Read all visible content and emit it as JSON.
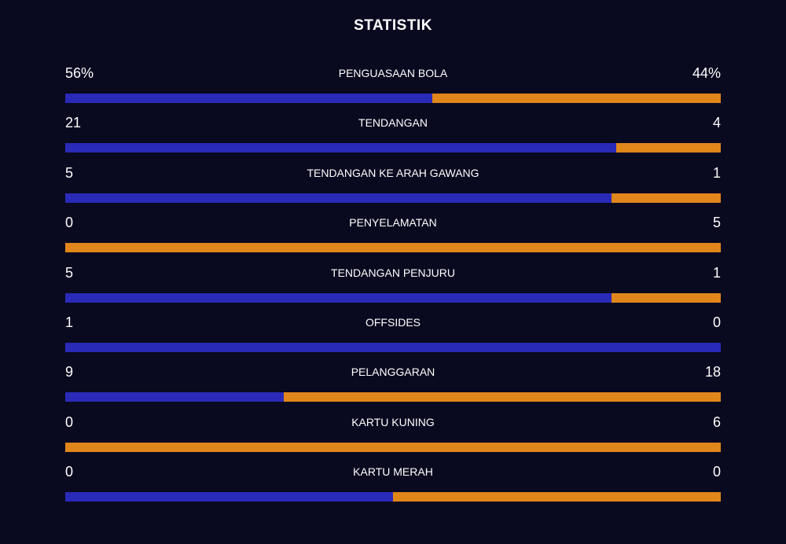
{
  "title": "STATISTIK",
  "colors": {
    "home": "#2a2ab8",
    "away": "#e0861b"
  },
  "rows": [
    {
      "label": "PENGUASAAN BOLA",
      "home": 56,
      "away": 44,
      "home_label": "56%",
      "away_label": "44%"
    },
    {
      "label": "TENDANGAN",
      "home": 21,
      "away": 4
    },
    {
      "label": "TENDANGAN KE ARAH GAWANG",
      "home": 5,
      "away": 1
    },
    {
      "label": "PENYELAMATAN",
      "home": 0,
      "away": 5
    },
    {
      "label": "TENDANGAN PENJURU",
      "home": 5,
      "away": 1
    },
    {
      "label": "OFFSIDES",
      "home": 1,
      "away": 0
    },
    {
      "label": "PELANGGARAN",
      "home": 9,
      "away": 18
    },
    {
      "label": "KARTU KUNING",
      "home": 0,
      "away": 6
    },
    {
      "label": "KARTU MERAH",
      "home": 0,
      "away": 0
    }
  ]
}
